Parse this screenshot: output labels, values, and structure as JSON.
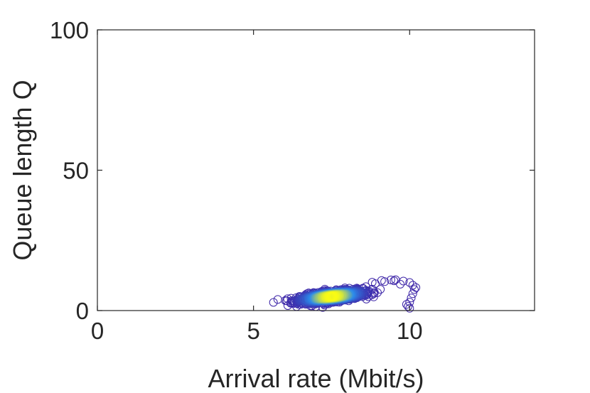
{
  "chart_data": {
    "type": "scatter",
    "title": "",
    "xlabel": "Arrival rate (Mbit/s)",
    "ylabel": "Queue length Q",
    "xlim": [
      0,
      14
    ],
    "ylim": [
      0,
      100
    ],
    "x_ticks": [
      0,
      5,
      10
    ],
    "y_ticks": [
      0,
      50,
      100
    ],
    "x_tick_labels": [
      "0",
      "5",
      "10"
    ],
    "y_tick_labels": [
      "0",
      "50",
      "100"
    ],
    "grid": false,
    "legend": "none",
    "marker": "open-circle",
    "color_encoding": "point density (blue = sparse, yellow = dense)",
    "colors": {
      "axes": "#262626",
      "sparse": "#3e26a8",
      "mid": "#2d8bea",
      "dense": "#f9fb15"
    },
    "clusters": [
      {
        "name": "main",
        "x_center": 7.5,
        "y_center": 5,
        "x_spread": 0.9,
        "y_spread": 1.6
      }
    ],
    "points": [
      [
        8.6,
        8.5
      ],
      [
        8.9,
        9.6
      ],
      [
        9.2,
        10.3
      ],
      [
        9.5,
        10.6
      ],
      [
        9.8,
        10.5
      ],
      [
        10.0,
        10.0
      ],
      [
        10.1,
        9.0
      ],
      [
        10.15,
        7.5
      ],
      [
        10.1,
        6.0
      ],
      [
        10.05,
        4.5
      ],
      [
        10.0,
        3.0
      ],
      [
        9.95,
        1.5
      ],
      [
        10.0,
        0.8
      ],
      [
        9.9,
        2.2
      ],
      [
        9.7,
        9.4
      ],
      [
        9.4,
        10.9
      ],
      [
        9.1,
        10.7
      ],
      [
        8.8,
        10.1
      ],
      [
        10.2,
        8.2
      ],
      [
        9.55,
        11.0
      ]
    ]
  }
}
